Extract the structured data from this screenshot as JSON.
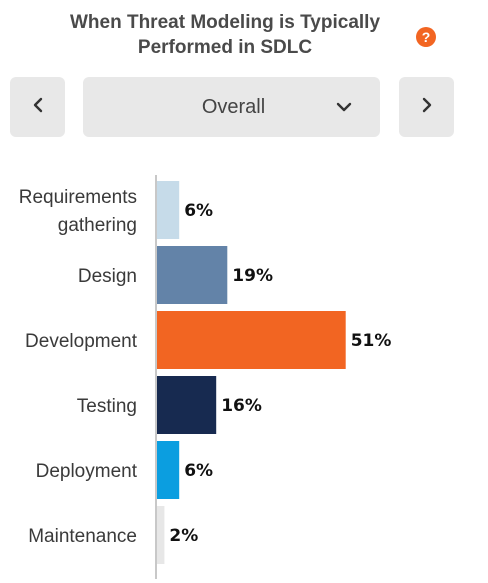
{
  "header": {
    "title": "When Threat Modeling is Typically Performed in SDLC",
    "help_icon": "question-icon",
    "help_glyph": "?"
  },
  "controls": {
    "prev_icon": "chevron-left-icon",
    "next_icon": "chevron-right-icon",
    "select_value": "Overall",
    "select_icon": "chevron-down-icon"
  },
  "colors": {
    "accent": "#f26522",
    "button_bg": "#e8e8e8"
  },
  "chart_data": {
    "type": "bar",
    "orientation": "horizontal",
    "categories": [
      [
        "Requirements",
        "gathering"
      ],
      [
        "Design"
      ],
      [
        "Development"
      ],
      [
        "Testing"
      ],
      [
        "Deployment"
      ],
      [
        "Maintenance"
      ]
    ],
    "values": [
      6,
      19,
      51,
      16,
      6,
      2
    ],
    "value_labels": [
      "6%",
      "19%",
      "51%",
      "16%",
      "6%",
      "2%"
    ],
    "colors": [
      "#c6dbe9",
      "#6383a8",
      "#f26522",
      "#172a50",
      "#0b9ee0",
      "#e7e7e7"
    ],
    "xlim": [
      0,
      100
    ],
    "grid": false
  }
}
